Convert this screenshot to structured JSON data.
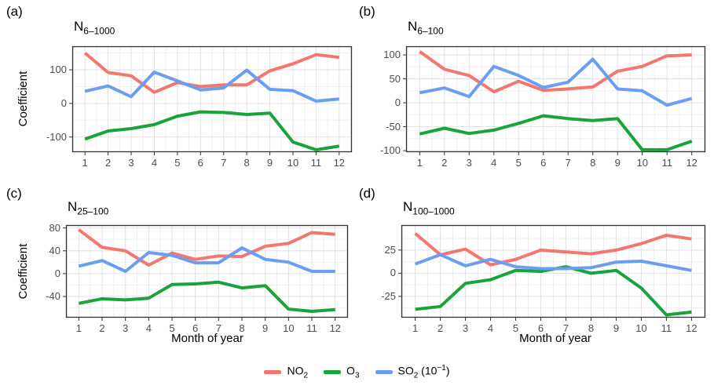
{
  "figure": {
    "background": "#ffffff",
    "colors": {
      "grid_major": "#e2e2e2",
      "grid_minor": "#efefef",
      "panel_border": "#333333",
      "tick_mark": "#333333",
      "tick_text": "#4d4d4d"
    },
    "legend": {
      "items": [
        {
          "name": "NO2",
          "base": "NO",
          "sub": "2",
          "suffix_pre": "",
          "sup": "",
          "suffix_post": "",
          "color": "#f4776e"
        },
        {
          "name": "O3",
          "base": "O",
          "sub": "3",
          "suffix_pre": "",
          "sup": "",
          "suffix_post": "",
          "color": "#17a43b"
        },
        {
          "name": "SO2 (10^-1)",
          "base": "SO",
          "sub": "2",
          "suffix_pre": " (10",
          "sup": "−1",
          "suffix_post": ")",
          "color": "#6b9ef2"
        }
      ]
    }
  },
  "chart_data": [
    {
      "type": "line",
      "panel_label": "(a)",
      "title_base": "N",
      "title_sub": "6–1000",
      "xlabel": "",
      "ylabel": "Coefficient",
      "x": [
        1,
        2,
        3,
        4,
        5,
        6,
        7,
        8,
        9,
        10,
        11,
        12
      ],
      "xticks": [
        1,
        2,
        3,
        4,
        5,
        6,
        7,
        8,
        9,
        10,
        11,
        12
      ],
      "yticks": [
        -100,
        0,
        100
      ],
      "ylim": [
        -145,
        170
      ],
      "xlim_data": [
        1,
        12
      ],
      "grid": true,
      "series": [
        {
          "name": "NO2",
          "color": "#f4776e",
          "values": [
            150,
            92,
            82,
            33,
            62,
            50,
            55,
            55,
            97,
            118,
            145,
            137
          ]
        },
        {
          "name": "O3",
          "color": "#17a43b",
          "values": [
            -106,
            -82,
            -75,
            -63,
            -38,
            -25,
            -27,
            -33,
            -29,
            -115,
            -138,
            -127
          ]
        },
        {
          "name": "SO2 (10^-1)",
          "color": "#6b9ef2",
          "values": [
            36,
            52,
            20,
            93,
            67,
            40,
            46,
            99,
            42,
            38,
            7,
            13
          ]
        }
      ]
    },
    {
      "type": "line",
      "panel_label": "(b)",
      "title_base": "N",
      "title_sub": "6–100",
      "xlabel": "",
      "ylabel": "",
      "x": [
        1,
        2,
        3,
        4,
        5,
        6,
        7,
        8,
        9,
        10,
        11,
        12
      ],
      "xticks": [
        1,
        2,
        3,
        4,
        5,
        6,
        7,
        8,
        9,
        10,
        11,
        12
      ],
      "yticks": [
        -100,
        -50,
        0,
        50,
        100
      ],
      "ylim": [
        -103,
        118
      ],
      "xlim_data": [
        1,
        12
      ],
      "grid": true,
      "series": [
        {
          "name": "NO2",
          "color": "#f4776e",
          "values": [
            107,
            70,
            57,
            23,
            45,
            26,
            29,
            33,
            66,
            76,
            98,
            100
          ]
        },
        {
          "name": "O3",
          "color": "#17a43b",
          "values": [
            -65,
            -53,
            -64,
            -57,
            -43,
            -27,
            -33,
            -37,
            -33,
            -98,
            -98,
            -80
          ]
        },
        {
          "name": "SO2 (10^-1)",
          "color": "#6b9ef2",
          "values": [
            21,
            31,
            13,
            76,
            57,
            32,
            43,
            91,
            29,
            25,
            -5,
            9
          ]
        }
      ]
    },
    {
      "type": "line",
      "panel_label": "(c)",
      "title_base": "N",
      "title_sub": "25–100",
      "xlabel": "Month of year",
      "ylabel": "Coefficient",
      "x": [
        1,
        2,
        3,
        4,
        5,
        6,
        7,
        8,
        9,
        10,
        11,
        12
      ],
      "xticks": [
        1,
        2,
        3,
        4,
        5,
        6,
        7,
        8,
        9,
        10,
        11,
        12
      ],
      "yticks": [
        -40,
        0,
        40,
        80
      ],
      "ylim": [
        -77,
        85
      ],
      "xlim_data": [
        1,
        12
      ],
      "grid": true,
      "series": [
        {
          "name": "NO2",
          "color": "#f4776e",
          "values": [
            77,
            46,
            40,
            15,
            36,
            25,
            31,
            30,
            48,
            53,
            72,
            69
          ]
        },
        {
          "name": "O3",
          "color": "#17a43b",
          "values": [
            -52,
            -44,
            -46,
            -43,
            -19,
            -18,
            -15,
            -25,
            -21,
            -62,
            -66,
            -63
          ]
        },
        {
          "name": "SO2 (10^-1)",
          "color": "#6b9ef2",
          "values": [
            13,
            23,
            4,
            37,
            32,
            19,
            19,
            45,
            25,
            20,
            4,
            4
          ]
        }
      ]
    },
    {
      "type": "line",
      "panel_label": "(d)",
      "title_base": "N",
      "title_sub": "100–1000",
      "xlabel": "Month of year",
      "ylabel": "",
      "x": [
        1,
        2,
        3,
        4,
        5,
        6,
        7,
        8,
        9,
        10,
        11,
        12
      ],
      "xticks": [
        1,
        2,
        3,
        4,
        5,
        6,
        7,
        8,
        9,
        10,
        11,
        12
      ],
      "yticks": [
        -25,
        0,
        25
      ],
      "ylim": [
        -48,
        52
      ],
      "xlim_data": [
        1,
        12
      ],
      "grid": true,
      "series": [
        {
          "name": "NO2",
          "color": "#f4776e",
          "values": [
            43,
            20,
            26,
            9,
            15,
            25,
            23,
            21,
            25,
            32,
            41,
            37
          ]
        },
        {
          "name": "O3",
          "color": "#17a43b",
          "values": [
            -39,
            -36,
            -11,
            -7,
            3,
            2,
            7,
            0,
            3,
            -16,
            -45,
            -42
          ]
        },
        {
          "name": "SO2 (10^-1)",
          "color": "#6b9ef2",
          "values": [
            10,
            20,
            8,
            15,
            7,
            5,
            5,
            6,
            12,
            13,
            8,
            3
          ]
        }
      ]
    }
  ]
}
